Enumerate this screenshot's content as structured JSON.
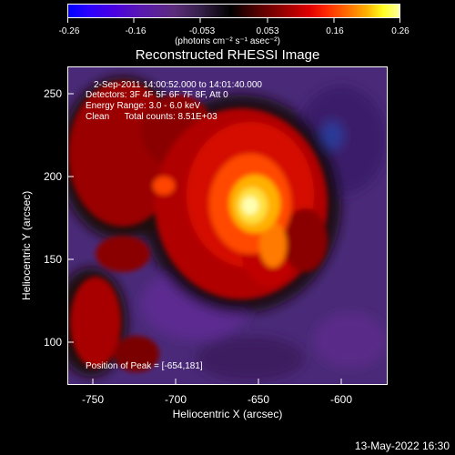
{
  "colorbar": {
    "tick_labels": [
      "-0.26",
      "-0.16",
      "-0.053",
      "0.053",
      "0.16",
      "0.26"
    ],
    "units": "(photons cm⁻² s⁻¹ asec⁻²)"
  },
  "title": "Reconstructed RHESSI Image",
  "annotations": {
    "line1": "2-Sep-2011 14:00:52.000 to 14:01:40.000",
    "line2": "Detectors: 3F 4F 5F 6F 7F 8F, Att 0",
    "line3": "Energy Range: 3.0 - 6.0 keV",
    "line4": "Clean      Total counts: 8.51E+03",
    "peak": "Position of Peak = [-654,181]"
  },
  "axes": {
    "xlabel": "Heliocentric X (arcsec)",
    "ylabel": "Heliocentric Y (arcsec)",
    "xticks": [
      "-750",
      "-700",
      "-650",
      "-600"
    ],
    "yticks": [
      "250",
      "200",
      "150",
      "100"
    ],
    "xlim": [
      -764,
      -570
    ],
    "ylim": [
      71,
      267
    ]
  },
  "peak": {
    "x": -654,
    "y": 181
  },
  "footer_date": "13-May-2022 16:30"
}
